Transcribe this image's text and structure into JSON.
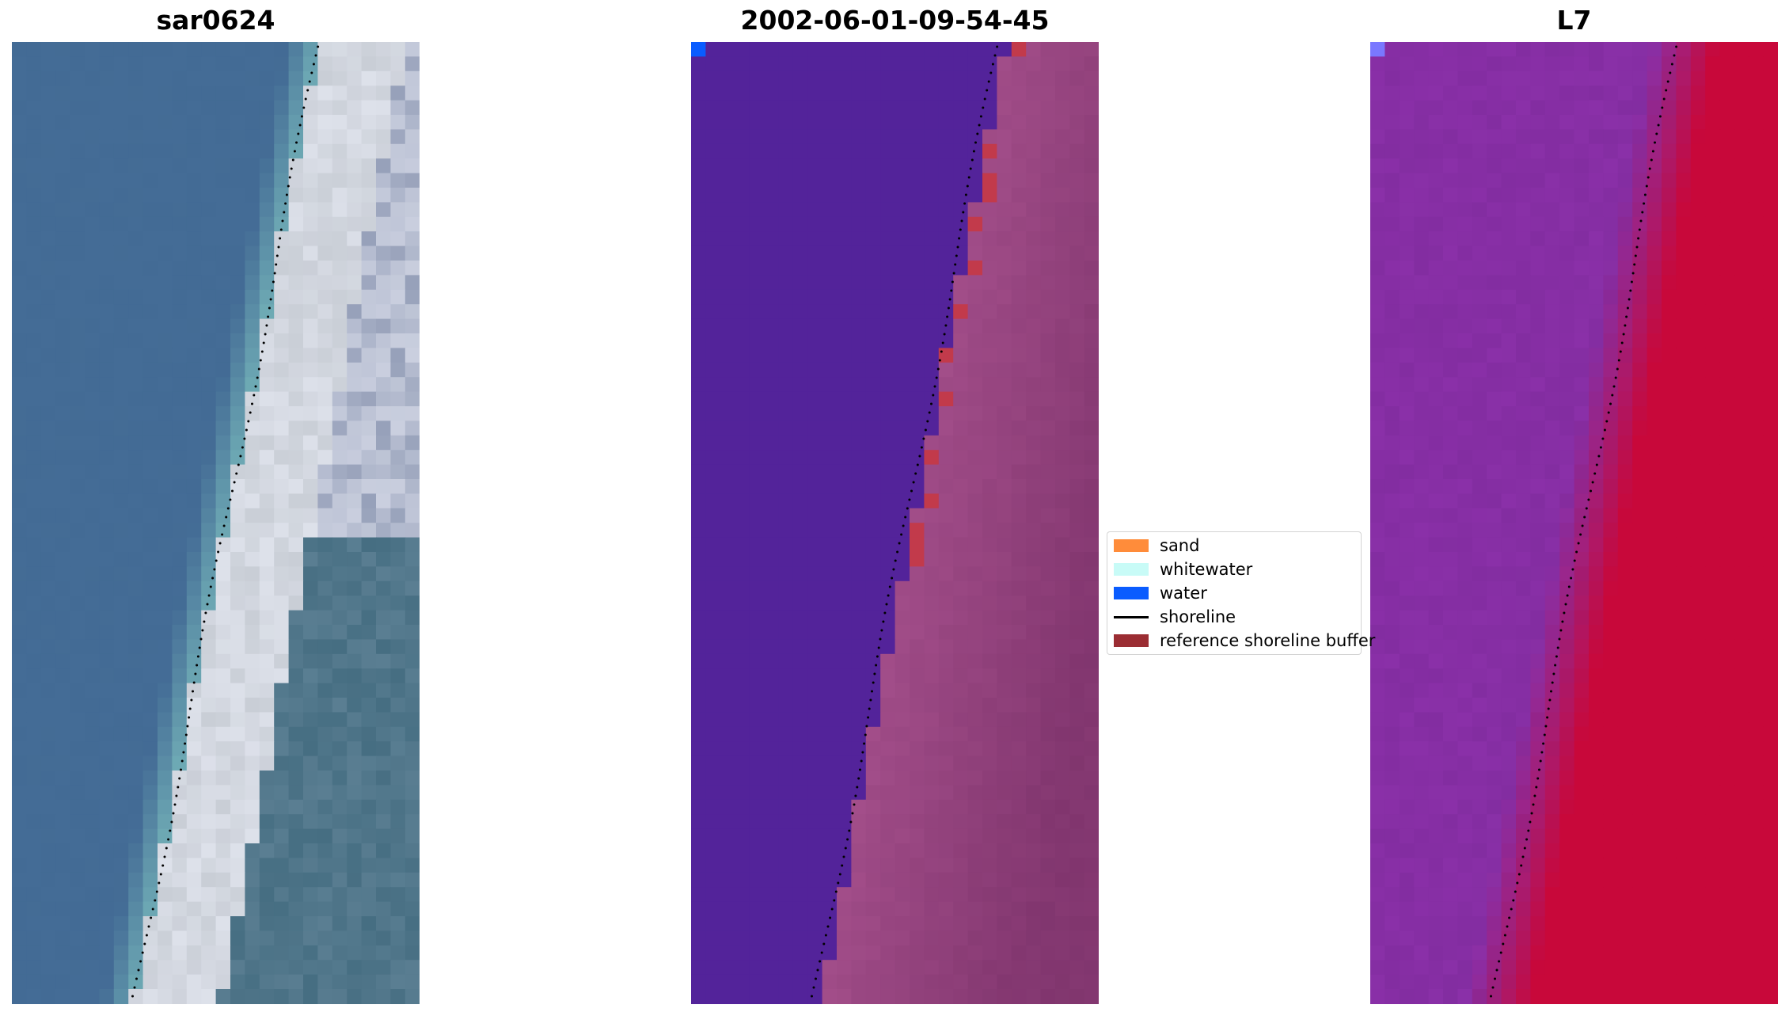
{
  "panels": [
    {
      "id": "rgb",
      "title": "sar0624"
    },
    {
      "id": "classified",
      "title": "2002-06-01-09-54-45"
    },
    {
      "id": "index",
      "title": "L7"
    }
  ],
  "legend": {
    "items": [
      {
        "label": "sand",
        "color": "#ff8c3a",
        "kind": "patch"
      },
      {
        "label": "whitewater",
        "color": "#c8fbf7",
        "kind": "patch"
      },
      {
        "label": "water",
        "color": "#0a5cff",
        "kind": "patch"
      },
      {
        "label": "shoreline",
        "color": "#000000",
        "kind": "line"
      },
      {
        "label": "reference shoreline buffer",
        "color": "#9b2d33",
        "kind": "patch"
      }
    ]
  },
  "colors": {
    "water_rgb": "#436b95",
    "sand_rgb": "#c9ced6",
    "water_class": "#53239a",
    "land_class": "#a34e8a",
    "buffer_class": "#c23a4b",
    "index_low": "#8a30a8",
    "index_high": "#c8083a"
  }
}
